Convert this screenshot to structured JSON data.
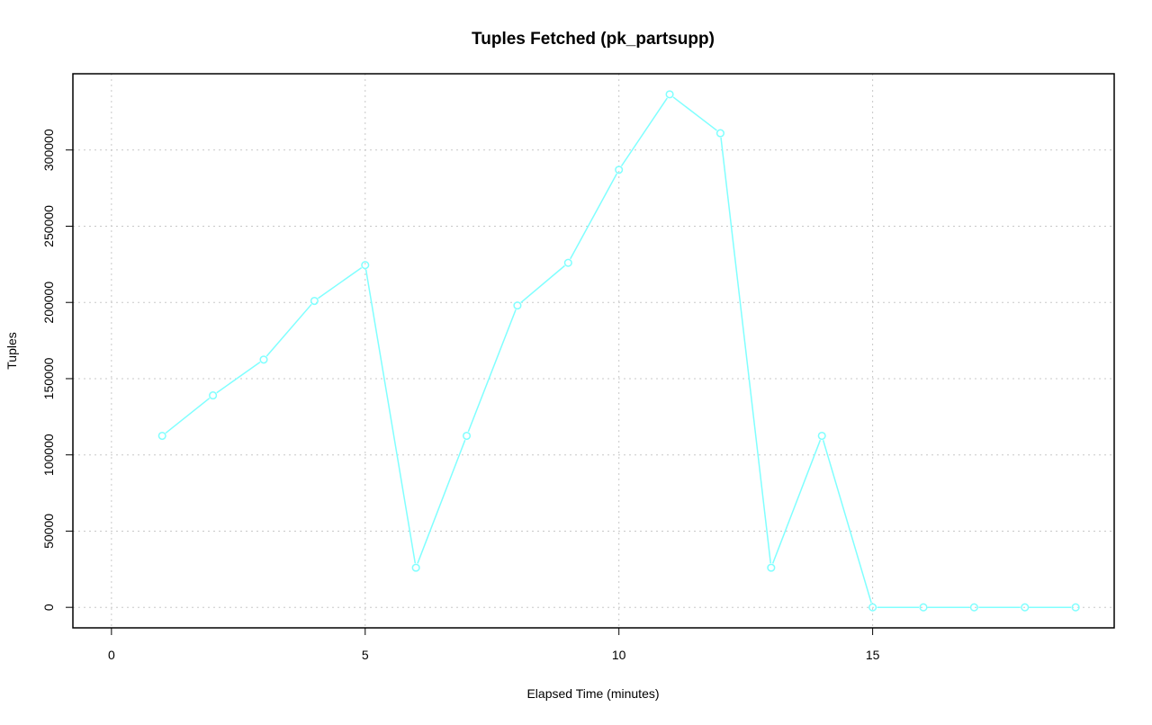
{
  "chart_data": {
    "type": "line",
    "title": "Tuples Fetched (pk_partsupp)",
    "xlabel": "Elapsed Time (minutes)",
    "ylabel": "Tuples",
    "xlim": [
      -0.76,
      19.76
    ],
    "ylim": [
      -13460,
      350000
    ],
    "xticks": [
      0,
      5,
      10,
      15
    ],
    "yticks": [
      0,
      50000,
      100000,
      150000,
      200000,
      250000,
      300000
    ],
    "grid": true,
    "series": [
      {
        "color": "#80ffff",
        "marker": "open-circle",
        "x": [
          1,
          2,
          3,
          4,
          5,
          6,
          7,
          8,
          9,
          10,
          11,
          12,
          13,
          14,
          15,
          16,
          17,
          18,
          19
        ],
        "y": [
          112500,
          139000,
          162500,
          201000,
          224500,
          26000,
          112500,
          198000,
          226000,
          287000,
          336500,
          311000,
          26000,
          112500,
          0,
          0,
          0,
          0,
          0
        ]
      }
    ]
  }
}
